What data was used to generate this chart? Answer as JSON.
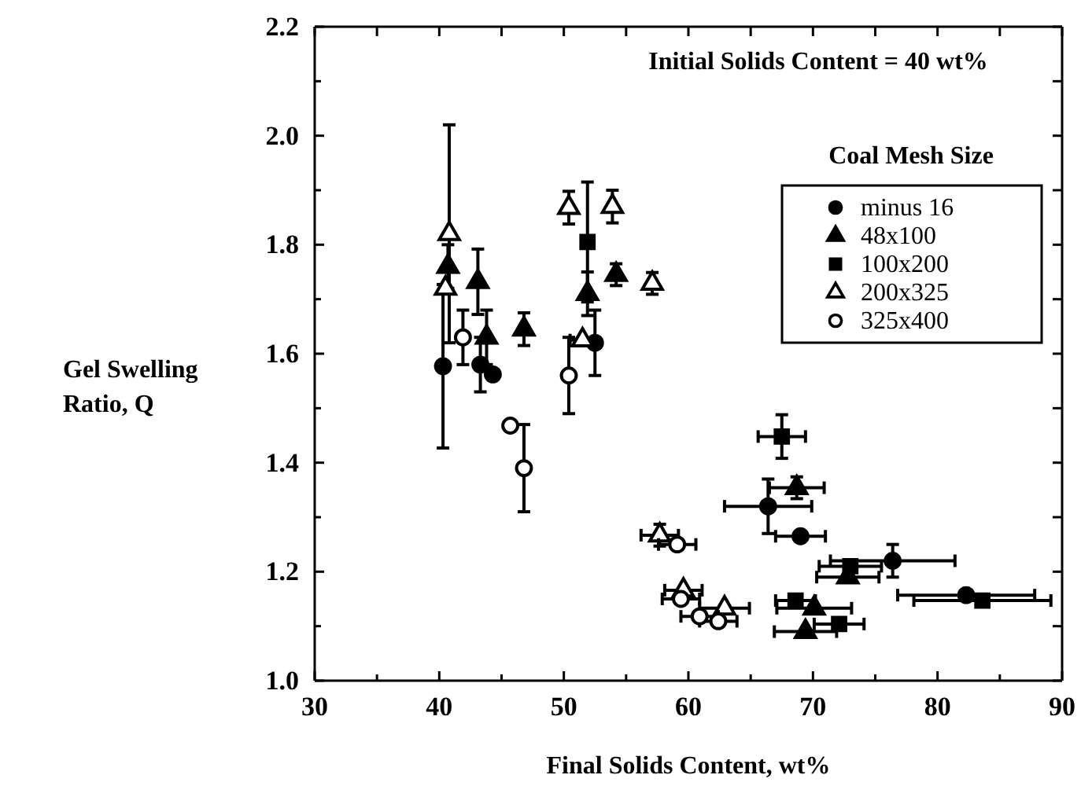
{
  "chart_data": {
    "type": "scatter",
    "xlabel": "Final Solids Content, wt%",
    "ylabel": "Gel Swelling Ratio, Q",
    "legend_title": "Coal Mesh Size",
    "legend": "top right",
    "grid": false,
    "annotations": [
      "Initial Solids Content = 40 wt%"
    ],
    "xlim": [
      30,
      90
    ],
    "xticks": [
      30,
      {
        "value": 35,
        "label": null
      },
      40,
      {
        "value": 45,
        "label": null
      },
      50,
      {
        "value": 55,
        "label": null
      },
      60,
      {
        "value": 65,
        "label": null
      },
      70,
      {
        "value": 75,
        "label": null
      },
      80,
      {
        "value": 85,
        "label": null
      },
      90
    ],
    "ylim": [
      1.0,
      2.2
    ],
    "yticks": [
      {
        "value": 1.0,
        "label": "1.0"
      },
      {
        "value": 1.1,
        "label": null
      },
      {
        "value": 1.2,
        "label": "1.2"
      },
      {
        "value": 1.3,
        "label": null
      },
      {
        "value": 1.4,
        "label": "1.4"
      },
      {
        "value": 1.5,
        "label": null
      },
      {
        "value": 1.6,
        "label": "1.6"
      },
      {
        "value": 1.7,
        "label": null
      },
      {
        "value": 1.8,
        "label": "1.8"
      },
      {
        "value": 1.9,
        "label": null
      },
      {
        "value": 2.0,
        "label": "2.0"
      },
      {
        "value": 2.1,
        "label": null
      },
      {
        "value": 2.2,
        "label": "2.2"
      }
    ],
    "series": [
      {
        "name": "minus 16",
        "color": "#000000",
        "marker": "circle",
        "x": [
          40.3,
          43.3,
          44.3,
          52.5,
          66.4,
          69.0,
          76.4,
          82.3
        ],
        "values": [
          1.577,
          1.58,
          1.562,
          1.62,
          1.32,
          1.265,
          1.22,
          1.157
        ],
        "errors": [
          0.15,
          0.05,
          null,
          0.06,
          0.05,
          null,
          0.03,
          null
        ],
        "xerrors": [
          null,
          null,
          null,
          null,
          3.5,
          2,
          5,
          5.5
        ]
      },
      {
        "name": "48x100",
        "color": "#000000",
        "marker": "triangle",
        "x": [
          40.7,
          43.1,
          43.8,
          46.8,
          51.9,
          54.2,
          68.7,
          72.8,
          70.1,
          69.4
        ],
        "values": [
          1.76,
          1.732,
          1.63,
          1.645,
          1.71,
          1.745,
          1.354,
          1.19,
          1.133,
          1.09
        ],
        "errors": [
          0.04,
          0.06,
          0.05,
          0.03,
          0.04,
          0.02,
          0.02,
          null,
          null,
          null
        ],
        "xerrors": [
          null,
          null,
          null,
          null,
          null,
          null,
          2.2,
          2.5,
          3,
          2.5
        ]
      },
      {
        "name": "100x200",
        "color": "#000000",
        "marker": "square",
        "x": [
          51.9,
          67.5,
          73.0,
          83.6,
          68.6,
          72.1
        ],
        "values": [
          1.805,
          1.448,
          1.21,
          1.147,
          1.147,
          1.104
        ],
        "errors": [
          0.11,
          0.04,
          null,
          null,
          null,
          null
        ],
        "xerrors": [
          null,
          1.9,
          2.5,
          5.5,
          1.6,
          2
        ]
      },
      {
        "name": "200x325",
        "color": "#000000",
        "marker": "triangle-open",
        "x": [
          40.8,
          40.5,
          50.4,
          53.9,
          57.1,
          51.5,
          57.7,
          59.6,
          62.9
        ],
        "values": [
          1.82,
          1.72,
          1.868,
          1.87,
          1.729,
          1.625,
          1.267,
          1.166,
          1.133
        ],
        "errors": [
          0.2,
          null,
          0.03,
          0.03,
          0.02,
          null,
          0.02,
          null,
          null
        ],
        "xerrors": [
          null,
          null,
          null,
          null,
          null,
          1,
          1.5,
          1.5,
          2
        ]
      },
      {
        "name": "325x400",
        "color": "#000000",
        "marker": "circle-open",
        "x": [
          41.9,
          45.7,
          46.8,
          50.4,
          59.1,
          59.4,
          60.9,
          62.4
        ],
        "values": [
          1.63,
          1.468,
          1.39,
          1.56,
          1.25,
          1.15,
          1.118,
          1.109
        ],
        "errors": [
          0.05,
          null,
          0.08,
          0.07,
          null,
          null,
          null,
          null
        ],
        "xerrors": [
          null,
          null,
          null,
          null,
          1.5,
          1.5,
          1.5,
          1.5
        ]
      }
    ]
  }
}
